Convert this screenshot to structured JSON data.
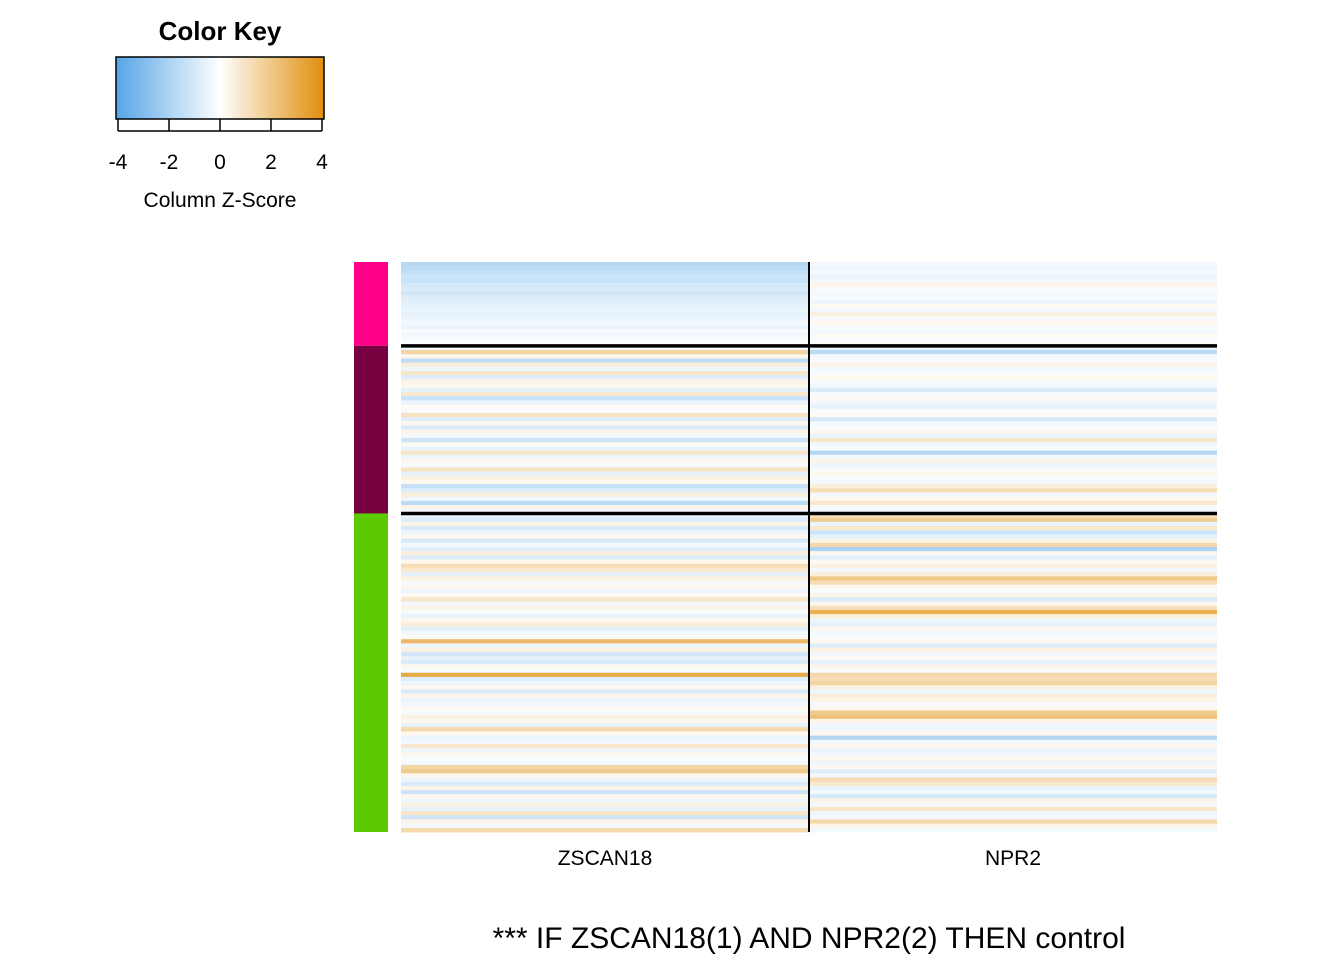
{
  "chart_data": {
    "type": "heatmap",
    "color_key": {
      "title": "Color Key",
      "label": "Column Z-Score",
      "ticks": [
        "-4",
        "-2",
        "0",
        "2",
        "4"
      ],
      "range": [
        -4,
        4
      ],
      "colors": {
        "low": "#56A5E6",
        "mid": "#FFFFFF",
        "high": "#E08E0B"
      }
    },
    "columns": [
      "ZSCAN18",
      "NPR2"
    ],
    "groups": [
      {
        "color": "#FF0088",
        "rows": [
          [
            -1.7,
            -0.3
          ],
          [
            -1.6,
            -0.4
          ],
          [
            -1.4,
            -0.2
          ],
          [
            -1.2,
            -0.5
          ],
          [
            -1.3,
            -0.3
          ],
          [
            -1.0,
            0.4
          ],
          [
            -0.9,
            -0.2
          ],
          [
            -1.1,
            -0.3
          ],
          [
            -0.8,
            -0.2
          ],
          [
            -0.7,
            -0.4
          ],
          [
            -0.6,
            0.2
          ],
          [
            -0.5,
            -0.3
          ],
          [
            -0.6,
            0.5
          ],
          [
            -0.4,
            -0.2
          ],
          [
            -0.3,
            0.3
          ],
          [
            -0.5,
            -0.2
          ],
          [
            -0.2,
            -0.3
          ],
          [
            -0.3,
            0.2
          ],
          [
            -0.2,
            -0.2
          ],
          [
            -0.1,
            0.1
          ]
        ]
      },
      {
        "color": "#770040",
        "rows": [
          [
            -0.3,
            -0.5
          ],
          [
            1.5,
            -1.6
          ],
          [
            0.3,
            -0.3
          ],
          [
            -1.5,
            -0.2
          ],
          [
            0.6,
            0.4
          ],
          [
            -0.4,
            -0.3
          ],
          [
            0.9,
            -0.2
          ],
          [
            -0.8,
            0.3
          ],
          [
            0.4,
            -0.2
          ],
          [
            0.3,
            -0.3
          ],
          [
            -0.6,
            -0.9
          ],
          [
            0.8,
            -0.2
          ],
          [
            -1.3,
            0.2
          ],
          [
            -0.5,
            -0.3
          ],
          [
            0.2,
            -0.6
          ],
          [
            -0.2,
            -0.2
          ],
          [
            1.0,
            0.2
          ],
          [
            -0.7,
            -1.0
          ],
          [
            0.3,
            -0.3
          ],
          [
            -0.9,
            -0.2
          ],
          [
            0.4,
            0.3
          ],
          [
            -0.3,
            -0.5
          ],
          [
            -1.2,
            0.9
          ],
          [
            0.2,
            -0.3
          ],
          [
            -0.5,
            -0.2
          ],
          [
            0.9,
            -1.8
          ],
          [
            -0.4,
            -0.3
          ],
          [
            0.3,
            0.4
          ],
          [
            -0.2,
            -0.4
          ],
          [
            1.0,
            -0.2
          ],
          [
            -0.6,
            0.3
          ],
          [
            0.5,
            -0.2
          ],
          [
            0.3,
            -0.3
          ],
          [
            -1.4,
            0.6
          ],
          [
            -0.8,
            1.2
          ],
          [
            0.6,
            -0.3
          ],
          [
            -0.4,
            0.3
          ],
          [
            -1.6,
            0.8
          ],
          [
            0.4,
            -0.2
          ],
          [
            -0.3,
            -0.3
          ]
        ]
      },
      {
        "color": "#5BCA02",
        "rows": [
          [
            -0.5,
            1.0
          ],
          [
            -0.8,
            1.8
          ],
          [
            0.4,
            -0.5
          ],
          [
            -0.9,
            0.8
          ],
          [
            -0.4,
            -1.2
          ],
          [
            0.3,
            -0.6
          ],
          [
            -1.0,
            0.4
          ],
          [
            -0.3,
            1.4
          ],
          [
            -0.7,
            -2.0
          ],
          [
            0.6,
            0.3
          ],
          [
            -0.8,
            -0.7
          ],
          [
            0.3,
            0.2
          ],
          [
            1.2,
            0.5
          ],
          [
            0.8,
            -0.3
          ],
          [
            -0.6,
            0.6
          ],
          [
            0.5,
            2.0
          ],
          [
            -0.2,
            1.2
          ],
          [
            0.3,
            0.3
          ],
          [
            -0.4,
            -0.2
          ],
          [
            0.2,
            0.4
          ],
          [
            0.9,
            -0.9
          ],
          [
            -0.3,
            0.3
          ],
          [
            0.4,
            1.1
          ],
          [
            -0.2,
            2.8
          ],
          [
            -0.5,
            0.6
          ],
          [
            0.3,
            -0.4
          ],
          [
            0.6,
            -0.6
          ],
          [
            -0.7,
            0.3
          ],
          [
            -0.3,
            -0.3
          ],
          [
            0.2,
            -0.2
          ],
          [
            2.5,
            0.3
          ],
          [
            -0.4,
            -0.8
          ],
          [
            0.5,
            0.5
          ],
          [
            -1.1,
            -0.3
          ],
          [
            -0.6,
            0.2
          ],
          [
            -0.9,
            -0.6
          ],
          [
            0.3,
            0.4
          ],
          [
            -0.2,
            -0.2
          ],
          [
            3.0,
            1.4
          ],
          [
            -0.8,
            1.2
          ],
          [
            -0.4,
            1.5
          ],
          [
            0.3,
            0.5
          ],
          [
            -0.9,
            -0.4
          ],
          [
            0.4,
            0.6
          ],
          [
            -0.5,
            0.4
          ],
          [
            -0.3,
            -0.3
          ],
          [
            0.2,
            0.3
          ],
          [
            -0.2,
            1.8
          ],
          [
            0.5,
            2.2
          ],
          [
            0.3,
            0.4
          ],
          [
            -0.6,
            -0.3
          ],
          [
            1.4,
            -0.4
          ],
          [
            0.3,
            0.3
          ],
          [
            -0.5,
            -1.8
          ],
          [
            -0.3,
            -0.3
          ],
          [
            0.8,
            0.3
          ],
          [
            -0.4,
            -0.5
          ],
          [
            0.3,
            -0.3
          ],
          [
            -0.2,
            0.3
          ],
          [
            -0.3,
            -0.4
          ],
          [
            1.5,
            0.3
          ],
          [
            1.8,
            -0.8
          ],
          [
            0.3,
            -0.3
          ],
          [
            -0.4,
            1.2
          ],
          [
            -0.9,
            0.8
          ],
          [
            0.4,
            -0.5
          ],
          [
            -1.2,
            -0.3
          ],
          [
            0.3,
            -1.0
          ],
          [
            -0.4,
            0.4
          ],
          [
            0.5,
            -0.3
          ],
          [
            -0.6,
            0.9
          ],
          [
            0.9,
            -0.4
          ],
          [
            -1.1,
            -0.3
          ],
          [
            0.4,
            1.4
          ],
          [
            -0.3,
            0.4
          ],
          [
            1.3,
            -0.3
          ]
        ]
      }
    ],
    "caption": "*** IF ZSCAN18(1) AND NPR2(2) THEN control"
  }
}
